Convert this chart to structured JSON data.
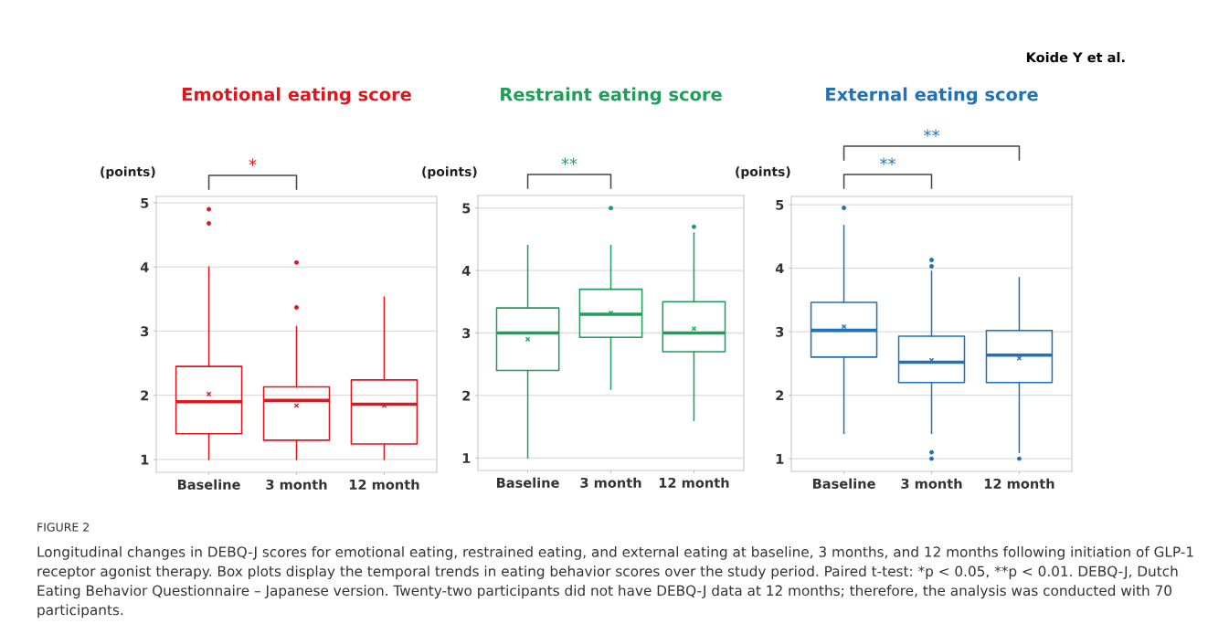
{
  "chart_data": [
    {
      "type": "box",
      "title": "Emotional eating score",
      "ylabel": "(points)",
      "categories": [
        "Baseline",
        "3 month",
        "12 month"
      ],
      "ylim": [
        0.8,
        5.1
      ],
      "yticks": [
        1,
        2,
        3,
        4,
        5
      ],
      "grid": "y",
      "legend": false,
      "series": [
        {
          "color": "#e0161f",
          "boxes": [
            {
              "low": 1.0,
              "q1": 1.4,
              "median": 1.9,
              "q3": 2.45,
              "high": 4.0,
              "mean": 2.02,
              "outliers": [
                4.9,
                4.68
              ]
            },
            {
              "low": 1.0,
              "q1": 1.3,
              "median": 1.92,
              "q3": 2.13,
              "high": 3.07,
              "mean": 1.84,
              "outliers": [
                4.07,
                3.37
              ]
            },
            {
              "low": 1.0,
              "q1": 1.24,
              "median": 1.86,
              "q3": 2.24,
              "high": 3.53,
              "mean": 1.84
            }
          ]
        }
      ],
      "annotations": [
        "*",
        "FIGURE 2",
        "Longitudinal changes in DEBQ-J scores for emotional eating, restrained eating, and external eating at baseline, 3 months, and 12 months following initiation of GLP-1 receptor agonist therapy. Box plots display the temporal trends in eating behavior scores over the study period. Paired t-test: *p < 0.05, **p < 0.01. DEBQ-J, Dutch Eating Behavior Questionnaire – Japanese version. Twenty-two participants did not have DEBQ-J data at 12 months; therefore, the analysis was conducted with 70 participants."
      ]
    },
    {
      "type": "box",
      "title": "Restraint eating score",
      "ylabel": "(points)",
      "categories": [
        "Baseline",
        "3 month",
        "12 month"
      ],
      "ylim": [
        0.8,
        5.2
      ],
      "yticks": [
        1,
        2,
        3,
        4,
        5
      ],
      "grid": "y",
      "legend": false,
      "series": [
        {
          "color": "#1e9e58",
          "boxes": [
            {
              "low": 1.0,
              "q1": 2.4,
              "median": 3.0,
              "q3": 3.4,
              "high": 4.4,
              "mean": 2.9
            },
            {
              "low": 2.1,
              "q1": 2.93,
              "median": 3.3,
              "q3": 3.7,
              "high": 4.4,
              "mean": 3.32,
              "outliers": [
                5.0
              ]
            },
            {
              "low": 1.6,
              "q1": 2.7,
              "median": 3.0,
              "q3": 3.5,
              "high": 4.6,
              "mean": 3.07,
              "outliers": [
                4.7
              ]
            }
          ]
        }
      ],
      "annotations": [
        "**"
      ]
    },
    {
      "type": "box",
      "title": "External eating score",
      "ylabel": "(points)",
      "categories": [
        "Baseline",
        "3 month",
        "12 month"
      ],
      "ylim": [
        0.8,
        5.13
      ],
      "yticks": [
        1,
        2,
        3,
        4,
        5
      ],
      "grid": "y",
      "legend": false,
      "series": [
        {
          "color": "#1f72b8",
          "boxes": [
            {
              "low": 1.4,
              "q1": 2.6,
              "median": 3.02,
              "q3": 3.46,
              "high": 4.67,
              "mean": 3.08,
              "outliers": [
                4.95
              ]
            },
            {
              "low": 1.4,
              "q1": 2.2,
              "median": 2.52,
              "q3": 2.93,
              "high": 3.95,
              "mean": 2.55,
              "outliers": [
                4.13,
                4.03,
                1.1,
                1.0
              ]
            },
            {
              "low": 1.1,
              "q1": 2.2,
              "median": 2.63,
              "q3": 3.02,
              "high": 3.85,
              "mean": 2.58,
              "outliers": [
                1.0
              ]
            }
          ]
        }
      ],
      "annotations": [
        "**",
        "**",
        "Koide Y et al."
      ]
    }
  ]
}
